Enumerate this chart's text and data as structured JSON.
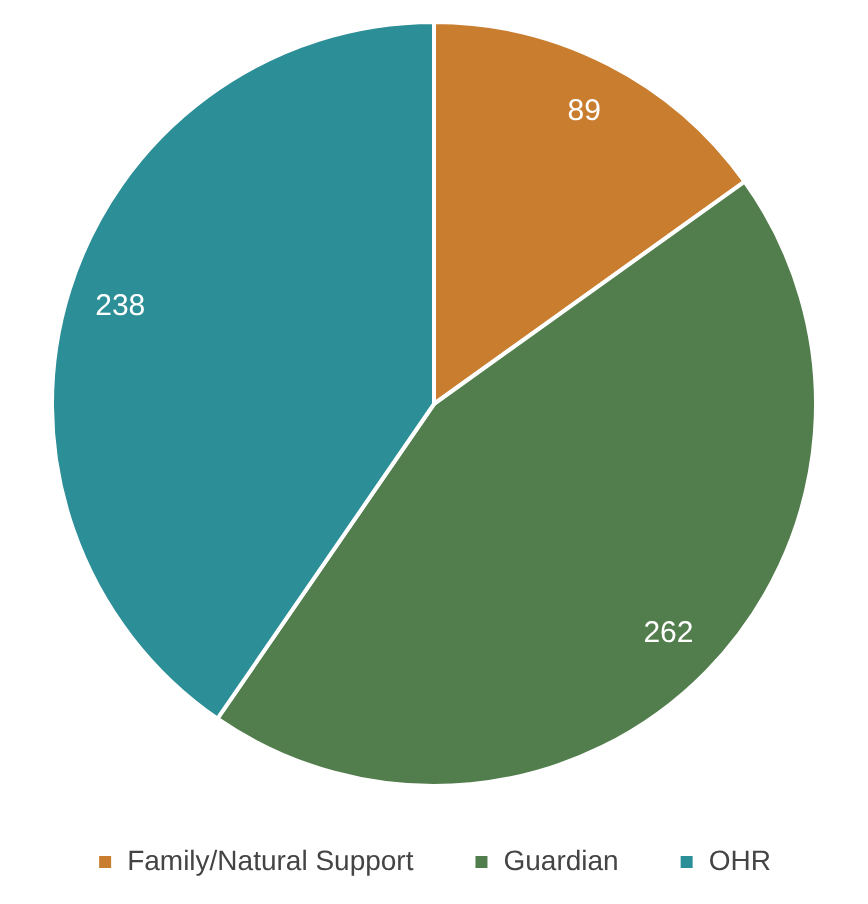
{
  "chart_data": {
    "type": "pie",
    "categories": [
      "Family/Natural Support",
      "Guardian",
      "OHR"
    ],
    "values": [
      89,
      262,
      238
    ],
    "colors": [
      "#c87d2f",
      "#527d4c",
      "#2c8e97"
    ],
    "data_labels": true,
    "legend": "bottom"
  }
}
